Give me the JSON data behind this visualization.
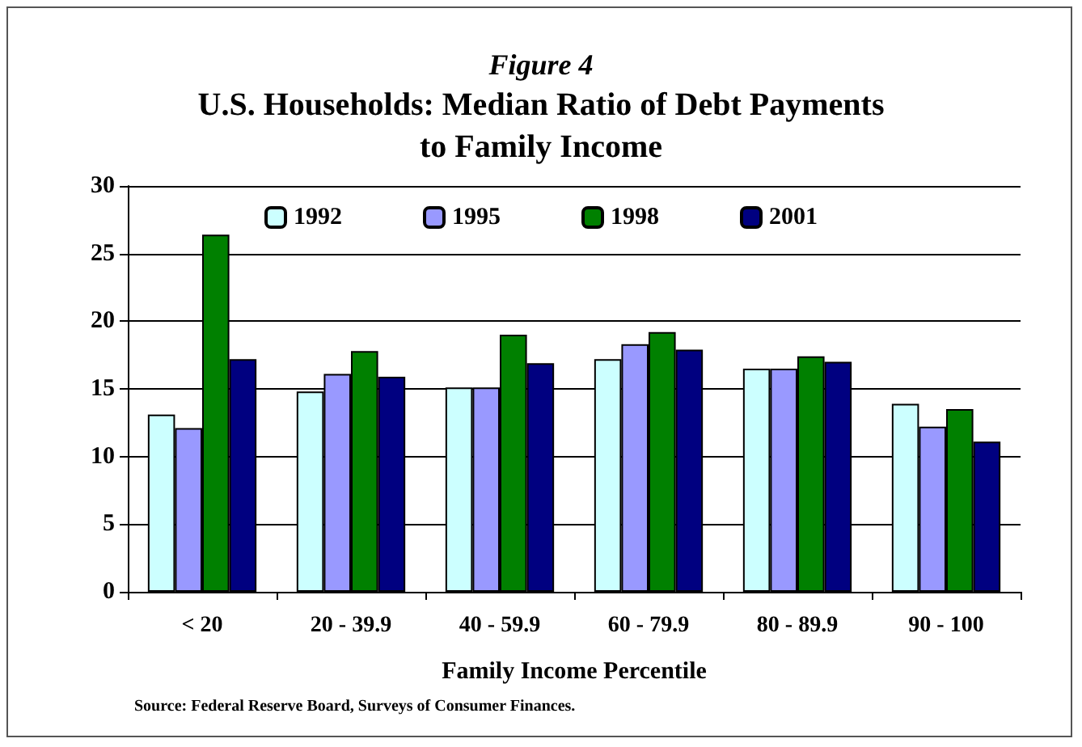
{
  "chart_data": {
    "type": "bar",
    "subtitle": "Figure 4",
    "title": "U.S. Households: Median Ratio of Debt Payments\nto Family Income",
    "xlabel": "Family Income Percentile",
    "categories": [
      "< 20",
      "20 - 39.9",
      "40 - 59.9",
      "60 - 79.9",
      "80 - 89.9",
      "90 - 100"
    ],
    "series": [
      {
        "name": "1992",
        "color": "#ccffff",
        "values": [
          13.1,
          14.8,
          15.1,
          17.2,
          16.5,
          13.9
        ]
      },
      {
        "name": "1995",
        "color": "#9999ff",
        "values": [
          12.1,
          16.1,
          15.1,
          18.3,
          16.5,
          12.2
        ]
      },
      {
        "name": "1998",
        "color": "#008000",
        "values": [
          26.4,
          17.8,
          19.0,
          19.2,
          17.4,
          13.5
        ]
      },
      {
        "name": "2001",
        "color": "#000080",
        "values": [
          17.2,
          15.9,
          16.9,
          17.9,
          17.0,
          11.1
        ]
      }
    ],
    "ylim": [
      0,
      30
    ],
    "yticks": [
      0,
      5,
      10,
      15,
      20,
      25,
      30
    ],
    "grid": "y",
    "legend": "top",
    "annotations": [
      "Source: Federal Reserve Board, Surveys of Consumer Finances."
    ]
  }
}
